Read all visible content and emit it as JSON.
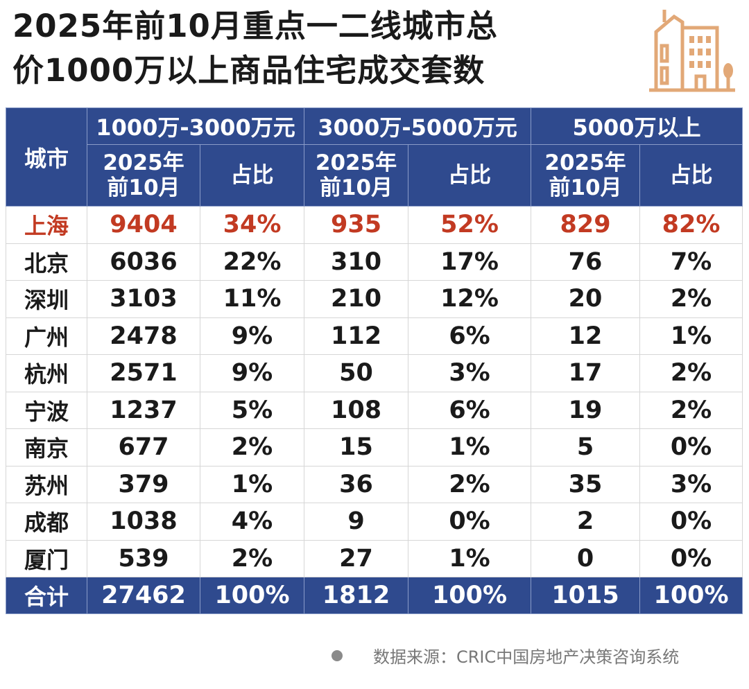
{
  "header": {
    "title_lines": [
      "2025年前10月重点一二线城市总",
      "价1000万以上商品住宅成交套数"
    ]
  },
  "table": {
    "city_label": "城市",
    "groups": [
      "1000万-3000万元",
      "3000万-5000万元",
      "5000万以上"
    ],
    "sub_headers": [
      [
        "2025年",
        "前10月"
      ],
      [
        "占比"
      ],
      [
        "2025年",
        "前10月"
      ],
      [
        "占比"
      ],
      [
        "2025年",
        "前10月"
      ],
      [
        "占比"
      ]
    ],
    "rows": [
      [
        "上海",
        9404,
        "34%",
        935,
        "52%",
        829,
        "82%"
      ],
      [
        "北京",
        6036,
        "22%",
        310,
        "17%",
        76,
        "7%"
      ],
      [
        "深圳",
        3103,
        "11%",
        210,
        "12%",
        20,
        "2%"
      ],
      [
        "广州",
        2478,
        "9%",
        112,
        "6%",
        12,
        "1%"
      ],
      [
        "杭州",
        2571,
        "9%",
        50,
        "3%",
        17,
        "2%"
      ],
      [
        "宁波",
        1237,
        "5%",
        108,
        "6%",
        19,
        "2%"
      ],
      [
        "南京",
        677,
        "2%",
        15,
        "1%",
        5,
        "0%"
      ],
      [
        "苏州",
        379,
        "1%",
        36,
        "2%",
        35,
        "3%"
      ],
      [
        "成都",
        1038,
        "4%",
        9,
        "0%",
        2,
        "0%"
      ],
      [
        "厦门",
        539,
        "2%",
        27,
        "1%",
        0,
        "0%"
      ]
    ],
    "total": [
      "合计",
      27462,
      "100%",
      1812,
      "100%",
      1015,
      "100%"
    ]
  },
  "source": "数据来源：CRIC中国房地产决策咨询系统"
}
